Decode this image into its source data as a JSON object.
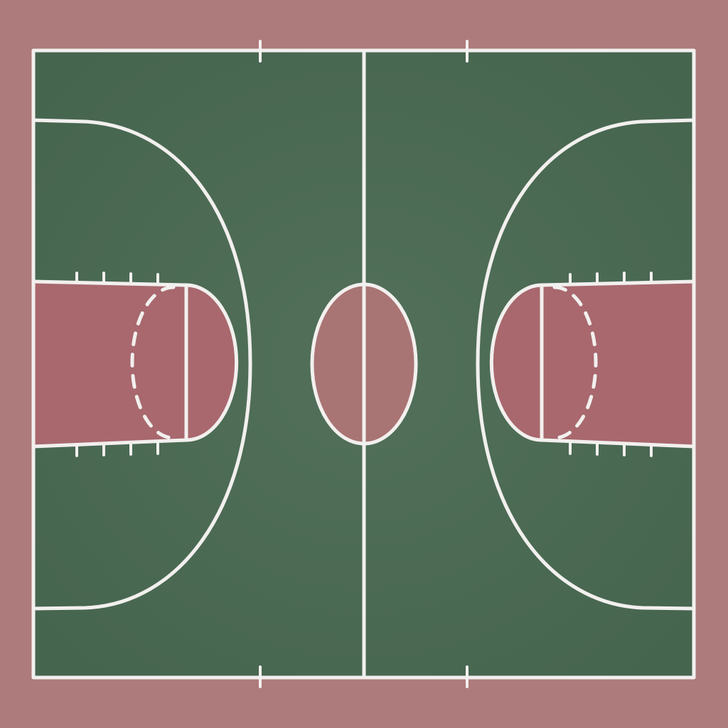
{
  "court": {
    "sport": "basketball",
    "view": "top-down",
    "colors": {
      "surround": "#ad7b7b",
      "playing_surface": "#4c6b55",
      "key_paint": "#a8686e",
      "center_circle_fill": "#a97474",
      "lines": "#f2f0ee"
    },
    "features": {
      "halfcourt_line": true,
      "center_circle": true,
      "three_point_arcs": 2,
      "free_throw_circles": 2,
      "dashed_free_throw_semicircles": 2,
      "lane_hash_marks_per_side": 8,
      "sideline_tick_marks": 4
    }
  }
}
